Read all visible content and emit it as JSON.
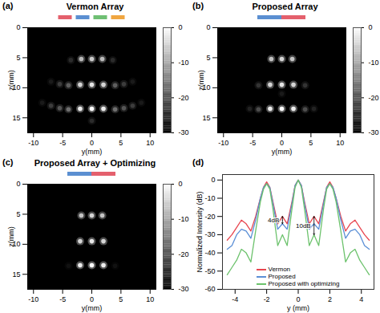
{
  "chart_data": [
    {
      "type": "heatmap",
      "panel_label": "(a)",
      "title": "Vermon Array",
      "colors": [
        "#e4606d",
        "#5b8fd1",
        "#6fbf73",
        "#f0a640"
      ],
      "xlabel": "y(mm)",
      "ylabel": "z(mm)",
      "xlim": [
        -11,
        11
      ],
      "xticks": [
        -10,
        -5,
        0,
        5,
        10
      ],
      "ylim": [
        0,
        17.5
      ],
      "yticks": [
        0,
        5,
        10,
        15
      ],
      "points": [
        {
          "y": -1.8,
          "z": 5.2,
          "value": -8
        },
        {
          "y": 0,
          "z": 5.2,
          "value": -6
        },
        {
          "y": 1.8,
          "z": 5.2,
          "value": -8
        },
        {
          "y": -2,
          "z": 9.5,
          "value": -5
        },
        {
          "y": 0,
          "z": 9.5,
          "value": -3
        },
        {
          "y": 2,
          "z": 9.5,
          "value": -5
        },
        {
          "y": -2,
          "z": 13.5,
          "value": -2
        },
        {
          "y": 0,
          "z": 13.5,
          "value": 0
        },
        {
          "y": 2,
          "z": 13.5,
          "value": -2
        },
        {
          "y": -3.6,
          "z": 5.4,
          "value": -25
        },
        {
          "y": 3.6,
          "z": 5.4,
          "value": -25
        },
        {
          "y": -4,
          "z": 9.6,
          "value": -19
        },
        {
          "y": 4,
          "z": 9.6,
          "value": -19
        },
        {
          "y": -5.5,
          "z": 9.4,
          "value": -23
        },
        {
          "y": 5.5,
          "z": 9.4,
          "value": -23
        },
        {
          "y": -7,
          "z": 9.0,
          "value": -27
        },
        {
          "y": 7,
          "z": 9.0,
          "value": -27
        },
        {
          "y": -4,
          "z": 13.6,
          "value": -17
        },
        {
          "y": 4,
          "z": 13.6,
          "value": -17
        },
        {
          "y": -5.5,
          "z": 13.4,
          "value": -20
        },
        {
          "y": 5.5,
          "z": 13.4,
          "value": -20
        },
        {
          "y": -7,
          "z": 13.0,
          "value": -23
        },
        {
          "y": 7,
          "z": 13.0,
          "value": -23
        },
        {
          "y": -8.5,
          "z": 12.5,
          "value": -27
        },
        {
          "y": 8.5,
          "z": 12.5,
          "value": -27
        },
        {
          "y": 0,
          "z": 15.5,
          "value": -25
        }
      ],
      "colorbar": {
        "range": [
          -30,
          0
        ],
        "ticks": [
          0,
          -10,
          -20,
          -30
        ]
      }
    },
    {
      "type": "heatmap",
      "panel_label": "(b)",
      "title": "Proposed Array",
      "colors": [
        "#5b8fd1",
        "#e4606d"
      ],
      "xlabel": "y(mm)",
      "ylabel": "z(mm)",
      "xlim": [
        -11,
        11
      ],
      "xticks": [
        -10,
        -5,
        0,
        5,
        10
      ],
      "ylim": [
        0,
        17.5
      ],
      "yticks": [
        0,
        5,
        10,
        15
      ],
      "points": [
        {
          "y": -1.8,
          "z": 5.2,
          "value": -7
        },
        {
          "y": 0,
          "z": 5.2,
          "value": -5
        },
        {
          "y": 1.8,
          "z": 5.2,
          "value": -7
        },
        {
          "y": -2,
          "z": 9.5,
          "value": -5
        },
        {
          "y": 0,
          "z": 9.5,
          "value": -3
        },
        {
          "y": 2,
          "z": 9.5,
          "value": -5
        },
        {
          "y": -2,
          "z": 13.5,
          "value": -2
        },
        {
          "y": 0,
          "z": 13.5,
          "value": 0
        },
        {
          "y": 2,
          "z": 13.5,
          "value": -2
        },
        {
          "y": -4,
          "z": 9.6,
          "value": -24
        },
        {
          "y": 4,
          "z": 9.6,
          "value": -24
        },
        {
          "y": -4,
          "z": 13.6,
          "value": -21
        },
        {
          "y": 4,
          "z": 13.6,
          "value": -21
        },
        {
          "y": -5.5,
          "z": 13.5,
          "value": -26
        },
        {
          "y": 5.5,
          "z": 13.5,
          "value": -26
        },
        {
          "y": 0,
          "z": 11,
          "value": -27
        }
      ],
      "colorbar": {
        "range": [
          -30,
          0
        ],
        "ticks": [
          0,
          -10,
          -20,
          -30
        ]
      }
    },
    {
      "type": "heatmap",
      "panel_label": "(c)",
      "title": "Proposed Array + Optimizing",
      "colors": [
        "#5b8fd1",
        "#e4606d"
      ],
      "xlabel": "y(mm)",
      "ylabel": "z(mm)",
      "xlim": [
        -11,
        11
      ],
      "xticks": [
        -10,
        -5,
        0,
        5,
        10
      ],
      "ylim": [
        0,
        17.5
      ],
      "yticks": [
        0,
        5,
        10,
        15
      ],
      "points": [
        {
          "y": -1.8,
          "z": 5.2,
          "value": -7
        },
        {
          "y": 0,
          "z": 5.2,
          "value": -5
        },
        {
          "y": 1.8,
          "z": 5.2,
          "value": -7
        },
        {
          "y": -2,
          "z": 9.5,
          "value": -5
        },
        {
          "y": 0,
          "z": 9.5,
          "value": -3
        },
        {
          "y": 2,
          "z": 9.5,
          "value": -5
        },
        {
          "y": -2,
          "z": 13.5,
          "value": -2
        },
        {
          "y": 0,
          "z": 13.5,
          "value": 0
        },
        {
          "y": 2,
          "z": 13.5,
          "value": -2
        },
        {
          "y": -4,
          "z": 13.6,
          "value": -28
        },
        {
          "y": 4,
          "z": 13.6,
          "value": -28
        }
      ],
      "colorbar": {
        "range": [
          -30,
          0
        ],
        "ticks": [
          0,
          -10,
          -20,
          -30
        ]
      }
    },
    {
      "type": "line",
      "panel_label": "(d)",
      "xlabel": "y (mm)",
      "ylabel": "Normalized Intensity (dB)",
      "x": [
        -4.5,
        -4.2,
        -3.9,
        -3.6,
        -3.3,
        -3.0,
        -2.7,
        -2.4,
        -2.2,
        -2.0,
        -1.8,
        -1.6,
        -1.3,
        -1.0,
        -0.7,
        -0.4,
        -0.2,
        0,
        0.2,
        0.4,
        0.7,
        1.0,
        1.3,
        1.6,
        1.8,
        2.0,
        2.2,
        2.4,
        2.7,
        3.0,
        3.3,
        3.6,
        3.9,
        4.2,
        4.5
      ],
      "series": [
        {
          "name": "Vermon",
          "color": "#e8454f",
          "values": [
            -33,
            -30,
            -26,
            -22,
            -24,
            -28,
            -20,
            -10,
            -4,
            -1,
            -4,
            -12,
            -24,
            -20,
            -24,
            -12,
            -3,
            0,
            -3,
            -12,
            -24,
            -20,
            -24,
            -12,
            -4,
            -1,
            -4,
            -10,
            -20,
            -28,
            -24,
            -22,
            -26,
            -30,
            -33
          ]
        },
        {
          "name": "Proposed",
          "color": "#5b8fd6",
          "values": [
            -38,
            -36,
            -30,
            -27,
            -28,
            -32,
            -22,
            -10,
            -4,
            -2,
            -4,
            -13,
            -27,
            -24,
            -27,
            -13,
            -3,
            0,
            -3,
            -13,
            -27,
            -24,
            -27,
            -13,
            -4,
            -2,
            -4,
            -10,
            -22,
            -32,
            -28,
            -27,
            -30,
            -36,
            -38
          ]
        },
        {
          "name": "Proposed with optimizing",
          "color": "#6cc26c",
          "values": [
            -52,
            -48,
            -44,
            -38,
            -40,
            -45,
            -28,
            -12,
            -5,
            -2,
            -5,
            -16,
            -36,
            -30,
            -36,
            -16,
            -4,
            0,
            -4,
            -16,
            -36,
            -30,
            -36,
            -16,
            -5,
            -2,
            -5,
            -12,
            -28,
            -45,
            -40,
            -38,
            -44,
            -48,
            -52
          ]
        }
      ],
      "xlim": [
        -4.8,
        4.8
      ],
      "xticks": [
        -4,
        -2,
        0,
        2,
        4
      ],
      "ylim": [
        -60,
        3
      ],
      "yticks": [
        0,
        -10,
        -20,
        -30,
        -40,
        -50,
        -60
      ],
      "legend": "bottom",
      "annotations": [
        {
          "text": "4dB",
          "x": -1.0,
          "y1": -20,
          "y2": -24
        },
        {
          "text": "10dB",
          "x": 1.0,
          "y1": -20,
          "y2": -30
        }
      ]
    }
  ]
}
